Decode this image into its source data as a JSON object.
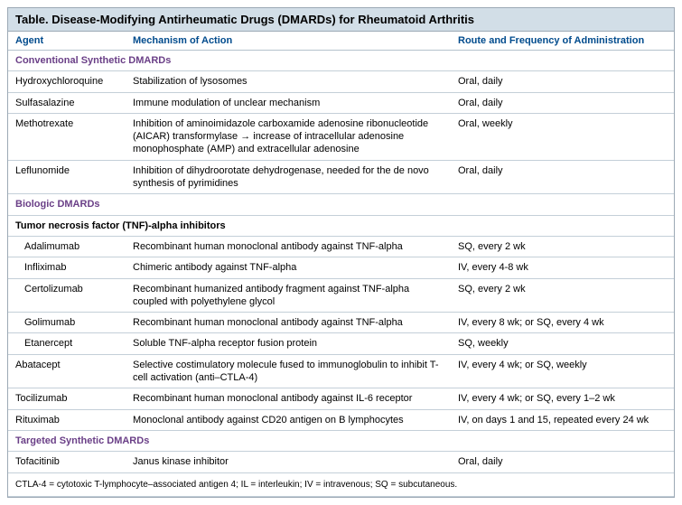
{
  "title_prefix": "Table.",
  "title_main": " Disease-Modifying Antirheumatic Drugs (DMARDs) for Rheumatoid Arthritis",
  "colors": {
    "header_bg": "#d2dee7",
    "border": "#9ca9b5",
    "row_border": "#c4cfd8",
    "col_header_text": "#004b8d",
    "section_text": "#6a3f87"
  },
  "columns": {
    "agent": "Agent",
    "mechanism": "Mechanism of Action",
    "route": "Route and Frequency of Administration"
  },
  "sections": {
    "conventional": "Conventional Synthetic DMARDs",
    "biologic": "Biologic DMARDs",
    "tnf": "Tumor necrosis factor (TNF)-alpha inhibitors",
    "targeted": "Targeted Synthetic DMARDs"
  },
  "rows": {
    "hydroxychloroquine": {
      "agent": "Hydroxychloroquine",
      "mech": "Stabilization of lysosomes",
      "route": "Oral, daily"
    },
    "sulfasalazine": {
      "agent": "Sulfasalazine",
      "mech": "Immune modulation of unclear mechanism",
      "route": "Oral, daily"
    },
    "methotrexate": {
      "agent": "Methotrexate",
      "mech": "Inhibition of aminoimidazole carboxamide adenosine ribonucleotide (AICAR) transformylase → increase of intracellular adenosine monophosphate (AMP) and extracellular adenosine",
      "route": "Oral, weekly"
    },
    "leflunomide": {
      "agent": "Leflunomide",
      "mech": "Inhibition of dihydroorotate dehydrogenase, needed for the de novo synthesis of pyrimidines",
      "route": "Oral, daily"
    },
    "adalimumab": {
      "agent": "Adalimumab",
      "mech": "Recombinant human monoclonal antibody against TNF-alpha",
      "route": "SQ, every 2 wk"
    },
    "infliximab": {
      "agent": "Infliximab",
      "mech": "Chimeric antibody against TNF-alpha",
      "route": "IV, every 4-8 wk"
    },
    "certolizumab": {
      "agent": "Certolizumab",
      "mech": "Recombinant humanized antibody fragment against TNF-alpha coupled with polyethylene glycol",
      "route": "SQ, every 2 wk"
    },
    "golimumab": {
      "agent": "Golimumab",
      "mech": "Recombinant human monoclonal antibody against TNF-alpha",
      "route": "IV, every 8 wk; or SQ, every 4 wk"
    },
    "etanercept": {
      "agent": "Etanercept",
      "mech": "Soluble TNF-alpha receptor fusion protein",
      "route": "SQ, weekly"
    },
    "abatacept": {
      "agent": "Abatacept",
      "mech": "Selective costimulatory molecule fused to immunoglobulin to inhibit T-cell activation (anti–CTLA-4)",
      "route": "IV, every 4 wk; or SQ, weekly"
    },
    "tocilizumab": {
      "agent": "Tocilizumab",
      "mech": "Recombinant human monoclonal antibody against IL-6 receptor",
      "route": "IV, every 4 wk; or SQ, every 1–2 wk"
    },
    "rituximab": {
      "agent": "Rituximab",
      "mech": "Monoclonal antibody against CD20 antigen on B lymphocytes",
      "route": "IV, on days 1 and 15, repeated every 24 wk"
    },
    "tofacitinib": {
      "agent": "Tofacitinib",
      "mech": "Janus kinase inhibitor",
      "route": "Oral, daily"
    }
  },
  "footnote": "CTLA-4 = cytotoxic T-lymphocyte–associated antigen 4; IL = interleukin; IV = intravenous; SQ = subcutaneous."
}
